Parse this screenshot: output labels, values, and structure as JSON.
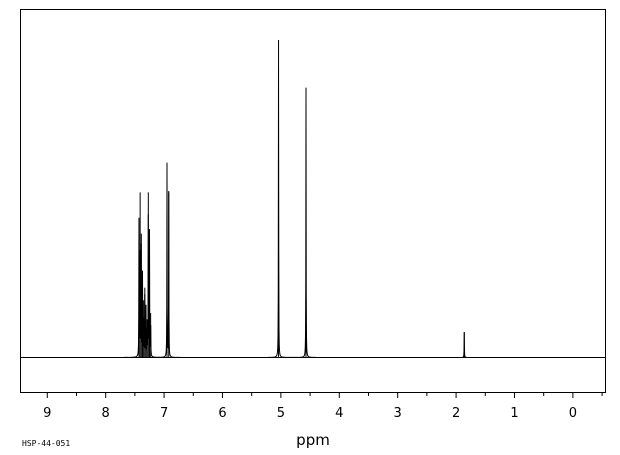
{
  "chart_data": {
    "type": "line",
    "title": "",
    "xlabel": "ppm",
    "ylabel": "",
    "sample_id": "HSP-44-051",
    "x_reversed": true,
    "xlim": [
      9.45,
      -0.55
    ],
    "ylim": [
      0,
      100
    ],
    "grid": false,
    "legend": "none",
    "line_color": "#000000",
    "x_ticks": [
      9,
      8,
      7,
      6,
      5,
      4,
      3,
      2,
      1,
      0
    ],
    "x_tick_labels": [
      "9",
      "8",
      "7",
      "6",
      "5",
      "4",
      "3",
      "2",
      "1",
      "0"
    ],
    "series": [
      {
        "peaks": [
          {
            "ppm": 7.43,
            "height": 44
          },
          {
            "ppm": 7.41,
            "height": 52
          },
          {
            "ppm": 7.39,
            "height": 39
          },
          {
            "ppm": 7.37,
            "height": 27
          },
          {
            "ppm": 7.35,
            "height": 18
          },
          {
            "ppm": 7.33,
            "height": 22
          },
          {
            "ppm": 7.31,
            "height": 16
          },
          {
            "ppm": 7.29,
            "height": 12
          },
          {
            "ppm": 7.27,
            "height": 52
          },
          {
            "ppm": 7.25,
            "height": 40
          },
          {
            "ppm": 7.23,
            "height": 14
          },
          {
            "ppm": 6.95,
            "height": 61
          },
          {
            "ppm": 6.92,
            "height": 52
          },
          {
            "ppm": 5.04,
            "height": 100
          },
          {
            "ppm": 4.57,
            "height": 85
          },
          {
            "ppm": 1.86,
            "height": 8
          }
        ]
      }
    ]
  }
}
